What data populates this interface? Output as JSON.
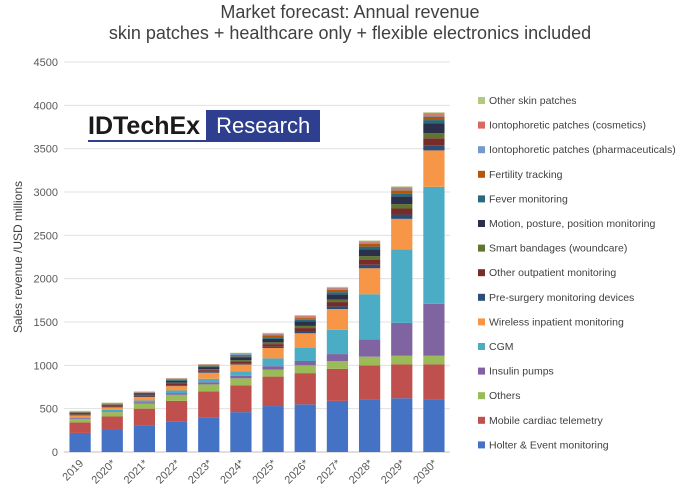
{
  "title_line1": "Market forecast: Annual revenue",
  "title_line2": "skin patches + healthcare only + flexible electronics included",
  "logo": {
    "left": "IDTechEx",
    "right": "Research"
  },
  "chart_data": {
    "type": "bar",
    "stacked": true,
    "title": "Market forecast: Annual revenue",
    "subtitle": "skin patches + healthcare only + flexible electronics included",
    "ylabel": "Sales revenue /USD millions",
    "xlabel": "",
    "ylim": [
      0,
      4500
    ],
    "yticks": [
      0,
      500,
      1000,
      1500,
      2000,
      2500,
      3000,
      3500,
      4000,
      4500
    ],
    "grid": true,
    "legend_position": "right",
    "categories": [
      "2019",
      "2020*",
      "2021*",
      "2022*",
      "2023*",
      "2024*",
      "2025*",
      "2026*",
      "2027*",
      "2028*",
      "2029*",
      "2030*"
    ],
    "series": [
      {
        "name": "Holter & Event monitoring",
        "color": "#4472c4",
        "values": [
          220,
          260,
          310,
          350,
          400,
          460,
          530,
          550,
          590,
          610,
          620,
          610
        ]
      },
      {
        "name": "Mobile cardiac telemetry",
        "color": "#c0504d",
        "values": [
          120,
          150,
          190,
          240,
          300,
          310,
          340,
          360,
          370,
          390,
          390,
          400
        ]
      },
      {
        "name": "Others",
        "color": "#9bbb59",
        "values": [
          40,
          50,
          60,
          70,
          80,
          80,
          80,
          90,
          90,
          100,
          100,
          100
        ]
      },
      {
        "name": "Insulin pumps",
        "color": "#8064a2",
        "values": [
          10,
          10,
          15,
          20,
          25,
          30,
          40,
          50,
          80,
          200,
          380,
          600
        ]
      },
      {
        "name": "CGM",
        "color": "#4bacc6",
        "values": [
          10,
          15,
          20,
          30,
          40,
          50,
          90,
          150,
          280,
          520,
          850,
          1350
        ]
      },
      {
        "name": "Wireless inpatient monitoring",
        "color": "#f79646",
        "values": [
          20,
          30,
          40,
          50,
          70,
          80,
          120,
          170,
          240,
          300,
          350,
          420
        ]
      },
      {
        "name": "Pre-surgery monitoring devices",
        "color": "#2c4d75",
        "values": [
          5,
          5,
          5,
          10,
          10,
          10,
          15,
          20,
          30,
          40,
          50,
          60
        ]
      },
      {
        "name": "Other outpatient monitoring",
        "color": "#772c2a",
        "values": [
          10,
          10,
          15,
          20,
          20,
          25,
          30,
          40,
          50,
          60,
          70,
          80
        ]
      },
      {
        "name": "Smart bandages (woundcare)",
        "color": "#5f7530",
        "values": [
          5,
          5,
          5,
          10,
          10,
          15,
          20,
          25,
          30,
          40,
          50,
          60
        ]
      },
      {
        "name": "Motion, posture, position monitoring",
        "color": "#2b2f4a",
        "values": [
          10,
          10,
          15,
          20,
          25,
          30,
          40,
          50,
          60,
          80,
          90,
          110
        ]
      },
      {
        "name": "Fever monitoring",
        "color": "#276a7c",
        "values": [
          5,
          5,
          5,
          10,
          10,
          15,
          20,
          20,
          25,
          30,
          35,
          40
        ]
      },
      {
        "name": "Fertility tracking",
        "color": "#b65708",
        "values": [
          5,
          5,
          5,
          10,
          10,
          15,
          20,
          20,
          25,
          30,
          35,
          40
        ]
      },
      {
        "name": "Iontophoretic patches (pharmaceuticals)",
        "color": "#729aca",
        "values": [
          5,
          5,
          5,
          5,
          5,
          10,
          10,
          15,
          15,
          15,
          20,
          20
        ]
      },
      {
        "name": "Iontophoretic patches (cosmetics)",
        "color": "#d9695f",
        "values": [
          5,
          5,
          5,
          5,
          5,
          10,
          10,
          10,
          10,
          15,
          15,
          20
        ]
      },
      {
        "name": "Other skin patches",
        "color": "#b2c97f",
        "values": [
          5,
          5,
          5,
          5,
          5,
          5,
          10,
          10,
          10,
          10,
          10,
          10
        ]
      }
    ]
  }
}
